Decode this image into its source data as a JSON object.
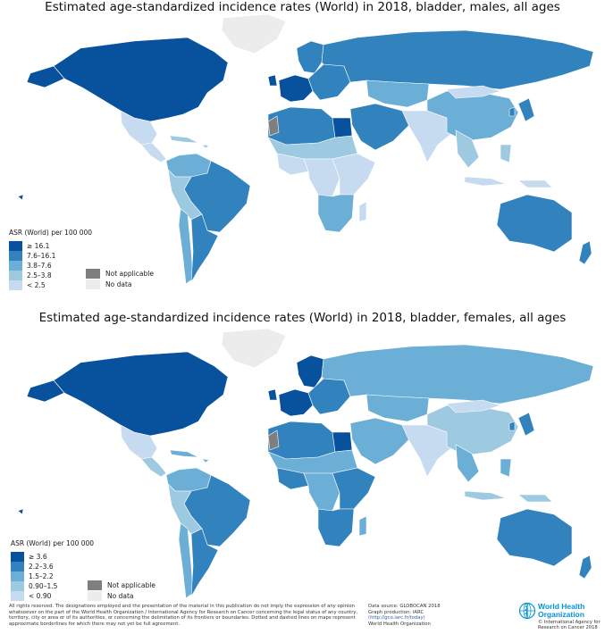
{
  "colors": {
    "c1": "#08519c",
    "c2": "#3182bd",
    "c3": "#6baed6",
    "c4": "#9ecae1",
    "c5": "#c6dbef",
    "not_applicable": "#7f7f7f",
    "no_data": "#ececec",
    "border": "#ffffff"
  },
  "panel_male": {
    "title": "Estimated age-standardized incidence rates (World) in 2018, bladder, males, all ages",
    "legend_title": "ASR (World) per 100 000",
    "legend": [
      {
        "label": "≥ 16.1",
        "color": "#08519c"
      },
      {
        "label": "7.6–16.1",
        "color": "#3182bd"
      },
      {
        "label": "3.8–7.6",
        "color": "#6baed6"
      },
      {
        "label": "2.5–3.8",
        "color": "#9ecae1"
      },
      {
        "label": "< 2.5",
        "color": "#c6dbef"
      }
    ],
    "not_applicable_label": "Not applicable",
    "no_data_label": "No data",
    "regions": {
      "north_america": "#08519c",
      "greenland": "#ececec",
      "mexico": "#c6dbef",
      "central_america": "#c6dbef",
      "caribbean": "#9ecae1",
      "colombia_ven": "#6baed6",
      "brazil": "#3182bd",
      "peru_bol": "#9ecae1",
      "argentina": "#3182bd",
      "chile": "#6baed6",
      "western_europe": "#08519c",
      "northern_europe": "#3182bd",
      "eastern_europe": "#3182bd",
      "russia": "#3182bd",
      "north_africa": "#3182bd",
      "egypt": "#08519c",
      "sahel": "#9ecae1",
      "west_africa": "#c6dbef",
      "central_africa": "#c6dbef",
      "east_africa": "#c6dbef",
      "southern_africa": "#6baed6",
      "madagascar": "#c6dbef",
      "middle_east": "#3182bd",
      "central_asia": "#6baed6",
      "south_asia": "#c6dbef",
      "china": "#6baed6",
      "mongolia": "#c6dbef",
      "japan_korea": "#3182bd",
      "se_asia": "#9ecae1",
      "indonesia": "#c6dbef",
      "australia": "#3182bd",
      "new_zealand": "#3182bd",
      "western_sahara": "#7f7f7f",
      "kashmir": "#7f7f7f"
    }
  },
  "panel_female": {
    "title": "Estimated age-standardized incidence rates (World) in 2018, bladder, females, all ages",
    "legend_title": "ASR (World) per 100 000",
    "legend": [
      {
        "label": "≥ 3.6",
        "color": "#08519c"
      },
      {
        "label": "2.2–3.6",
        "color": "#3182bd"
      },
      {
        "label": "1.5–2.2",
        "color": "#6baed6"
      },
      {
        "label": "0.90–1.5",
        "color": "#9ecae1"
      },
      {
        "label": "< 0.90",
        "color": "#c6dbef"
      }
    ],
    "not_applicable_label": "Not applicable",
    "no_data_label": "No data",
    "regions": {
      "north_america": "#08519c",
      "greenland": "#ececec",
      "mexico": "#c6dbef",
      "central_america": "#9ecae1",
      "caribbean": "#6baed6",
      "colombia_ven": "#6baed6",
      "brazil": "#3182bd",
      "peru_bol": "#9ecae1",
      "argentina": "#3182bd",
      "chile": "#6baed6",
      "western_europe": "#08519c",
      "northern_europe": "#08519c",
      "eastern_europe": "#3182bd",
      "russia": "#6baed6",
      "north_africa": "#3182bd",
      "egypt": "#08519c",
      "sahel": "#6baed6",
      "west_africa": "#3182bd",
      "central_africa": "#6baed6",
      "east_africa": "#3182bd",
      "southern_africa": "#3182bd",
      "madagascar": "#6baed6",
      "middle_east": "#6baed6",
      "central_asia": "#6baed6",
      "south_asia": "#c6dbef",
      "china": "#9ecae1",
      "mongolia": "#c6dbef",
      "japan_korea": "#3182bd",
      "se_asia": "#6baed6",
      "indonesia": "#9ecae1",
      "australia": "#3182bd",
      "new_zealand": "#3182bd",
      "western_sahara": "#7f7f7f",
      "kashmir": "#7f7f7f"
    }
  },
  "footer": {
    "disclaimer": "All rights reserved. The designations employed and the presentation of the material in this publication do not imply the expression of any opinion whatsoever on the part of the World Health Organization / International Agency for Research on Cancer concerning the legal status of any country, territory, city or area or of its authorities, or concerning the delimitation of its frontiers or boundaries. Dotted and dashed lines on maps represent approximate borderlines for which there may not yet be full agreement.",
    "source_lines": [
      "Data source: GLOBOCAN 2018",
      "Graph production: IARC",
      "(http://gco.iarc.fr/today)",
      "World Health Organization"
    ],
    "who_name": [
      "World Health",
      "Organization"
    ],
    "iarc_lines": [
      "© International Agency for",
      "Research on Cancer 2018"
    ]
  }
}
